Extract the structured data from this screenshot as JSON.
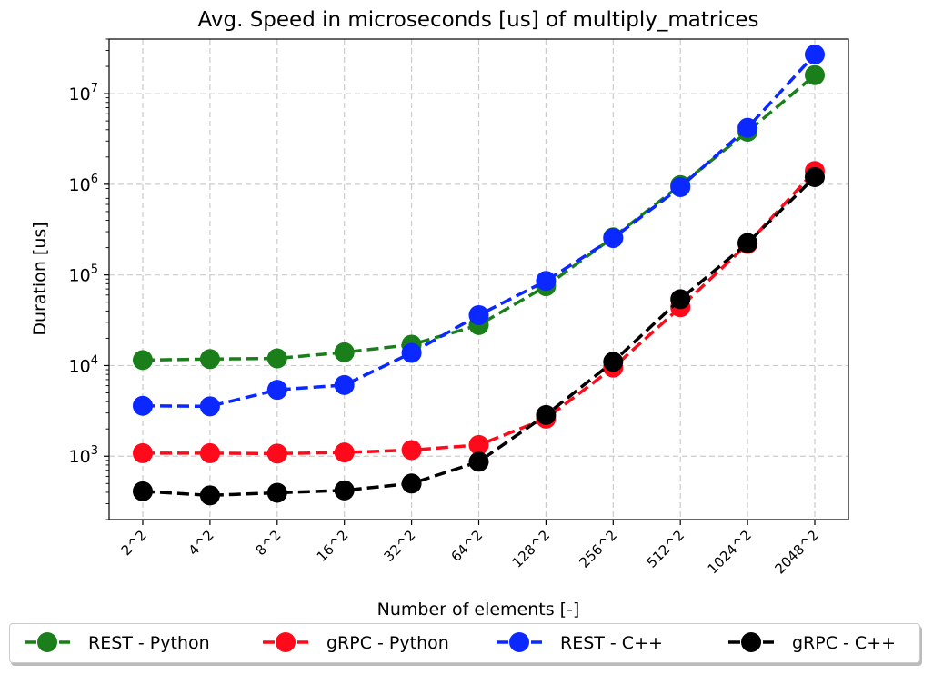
{
  "chart_data": {
    "type": "line",
    "title": "Avg. Speed in microseconds [us] of multiply_matrices",
    "xlabel": "Number of elements [-]",
    "ylabel": "Duration [us]",
    "categories": [
      "2^2",
      "4^2",
      "8^2",
      "16^2",
      "32^2",
      "64^2",
      "128^2",
      "256^2",
      "512^2",
      "1024^2",
      "2048^2"
    ],
    "y_scale": "log",
    "ylim": [
      200,
      40000000
    ],
    "y_ticks": [
      {
        "base": "10",
        "exp": "3",
        "value": 1000
      },
      {
        "base": "10",
        "exp": "4",
        "value": 10000
      },
      {
        "base": "10",
        "exp": "5",
        "value": 100000
      },
      {
        "base": "10",
        "exp": "6",
        "value": 1000000
      },
      {
        "base": "10",
        "exp": "7",
        "value": 10000000
      }
    ],
    "grid": true,
    "legend_placement": "bottom (below plot)",
    "series": [
      {
        "name": "REST - Python",
        "color": "#1a7f1a",
        "values": [
          11500,
          11800,
          12000,
          14000,
          17000,
          28000,
          75000,
          260000,
          980000,
          3800000,
          16000000
        ]
      },
      {
        "name": "gRPC - Python",
        "color": "#ff0a1a",
        "values": [
          1080,
          1080,
          1070,
          1100,
          1170,
          1330,
          2600,
          9500,
          44000,
          220000,
          1400000
        ]
      },
      {
        "name": "REST - C++",
        "color": "#0a28ff",
        "values": [
          3600,
          3550,
          5400,
          6100,
          13800,
          36000,
          86000,
          255000,
          930000,
          4200000,
          27000000
        ]
      },
      {
        "name": "gRPC - C++",
        "color": "#000000",
        "values": [
          410,
          370,
          395,
          420,
          500,
          870,
          2850,
          11000,
          54000,
          225000,
          1200000
        ]
      }
    ]
  }
}
